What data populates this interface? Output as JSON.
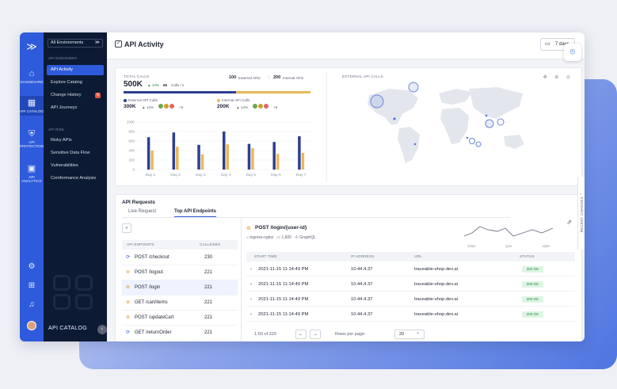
{
  "rail": {
    "items": [
      {
        "label": "DASHBOARD",
        "icon": "home-icon",
        "glyph": "⌂"
      },
      {
        "label": "API CATALOG",
        "icon": "grid-icon",
        "glyph": "▦"
      },
      {
        "label": "API PROTECTION",
        "icon": "shield-icon",
        "glyph": "⛨"
      },
      {
        "label": "API ANALYTICS",
        "icon": "analytics-icon",
        "glyph": "▣"
      }
    ],
    "bottom_icons": [
      {
        "icon": "settings-icon",
        "glyph": "⚙"
      },
      {
        "icon": "integrations-icon",
        "glyph": "⊞"
      },
      {
        "icon": "bell-icon",
        "glyph": "♫"
      }
    ],
    "logo_glyph": "≫"
  },
  "sidebar": {
    "env_selector": "All Environments",
    "env_arrow": "≫",
    "section_discovery": "API DISCOVERY",
    "discovery_items": [
      "API Activity",
      "Explore Catalog",
      "Change History",
      "API Journeys"
    ],
    "change_history_badge": "5",
    "section_risk": "API RISK",
    "risk_items": [
      "Risky APIs",
      "Sensitive Data Flow",
      "Vulnerabilities",
      "Comformance Analysis"
    ],
    "footer": "API CATALOG",
    "collapse_glyph": "‹"
  },
  "header": {
    "title": "API Activity",
    "title_glyph": "✓",
    "date_range": "7 days",
    "calendar_glyph": "▭",
    "focus_glyph": "⌾"
  },
  "stats": {
    "total_label": "TOTAL CALLS",
    "total_value": "500K",
    "total_change": "▲ 14%",
    "calls_per_sec": "66",
    "calls_per_sec_unit": "Calls / s",
    "external_count": "100",
    "external_label": "External APIs",
    "internal_count": "200",
    "internal_label": "Internal APIs",
    "external_calls_label": "External API Calls",
    "external_calls_value": "300K",
    "external_change": "▲ 14%",
    "external_more": "+5",
    "internal_calls_label": "Internal API Calls",
    "internal_calls_value": "200K",
    "internal_change": "▲ 14%",
    "internal_more": "+5",
    "external_share": 0.6,
    "map_label": "EXTERNAL API CALLS",
    "map_tools": "✥ ⊕ ⊖",
    "colors": {
      "external": "#2e3f8f",
      "internal": "#e9b85a"
    }
  },
  "chart_data": {
    "type": "bar",
    "categories": [
      "Day 1",
      "Day 2",
      "Day 3",
      "Day 4",
      "Day 5",
      "Day 6",
      "Day 7"
    ],
    "series": [
      {
        "name": "External API Calls",
        "values": [
          680,
          780,
          520,
          800,
          540,
          580,
          700
        ]
      },
      {
        "name": "Internal API Calls",
        "values": [
          400,
          480,
          320,
          530,
          450,
          330,
          350
        ]
      }
    ],
    "yticks": [
      "1000",
      "800",
      "600",
      "400",
      "200",
      "0"
    ],
    "ylim": [
      0,
      1000
    ],
    "grid": true
  },
  "requests": {
    "title": "API Requests",
    "tabs": [
      "Live Request",
      "Top API Endpoints"
    ],
    "search_glyph": "⌕",
    "endpoint_header": "API ENPOINTS",
    "calls_header": "CALLS/MIN",
    "endpoints": [
      {
        "name": "POST /checkout",
        "calls": "230",
        "glyph": "⟳"
      },
      {
        "name": "POST /logout",
        "calls": "221",
        "glyph": "⊛"
      },
      {
        "name": "POST /login",
        "calls": "221",
        "glyph": "⊛"
      },
      {
        "name": "GET /cart/items",
        "calls": "221",
        "glyph": "⊛"
      },
      {
        "name": "POST /updateCart",
        "calls": "221",
        "glyph": "⊛"
      },
      {
        "name": "GET /returnOrder",
        "calls": "221",
        "glyph": "⟳"
      }
    ],
    "detail": {
      "title": "POST /login/{user-id}",
      "title_glyph": "⊛",
      "ingress": "⌂ ingress-nginx",
      "count": "▭ 1,600",
      "protocol": "‹/› GraphQL",
      "external_glyph": "⇗"
    },
    "spark_labels": [
      "10am",
      "1pm",
      "12pm"
    ],
    "table_headers": [
      "START TIME",
      "IP ADDRESS",
      "URL",
      "STATUS"
    ],
    "table_rows": [
      {
        "time": "2021-11-15 11:14:49 PM",
        "ip": "10.44.4.37",
        "url": "traceable-shop.dev.ai",
        "status": "200 OK"
      },
      {
        "time": "2021-11-15 11:14:49 PM",
        "ip": "10.44.4.37",
        "url": "traceable-shop.dev.ai",
        "status": "200 OK"
      },
      {
        "time": "2021-11-15 11:14:49 PM",
        "ip": "10.44.4.37",
        "url": "traceable-shop.dev.ai",
        "status": "200 OK"
      },
      {
        "time": "2021-11-15 11:14:49 PM",
        "ip": "10.44.4.37",
        "url": "traceable-shop.dev.ai",
        "status": "200 OK"
      }
    ],
    "row_chevron": "›",
    "pagination": "1-50 of 320",
    "prev_glyph": "←",
    "next_glyph": "→",
    "rows_per_page_label": "Rows per page:",
    "rows_per_page": "20",
    "rows_chevron": "⌄"
  },
  "side_tab": "RECENT CHANGES ⌃"
}
